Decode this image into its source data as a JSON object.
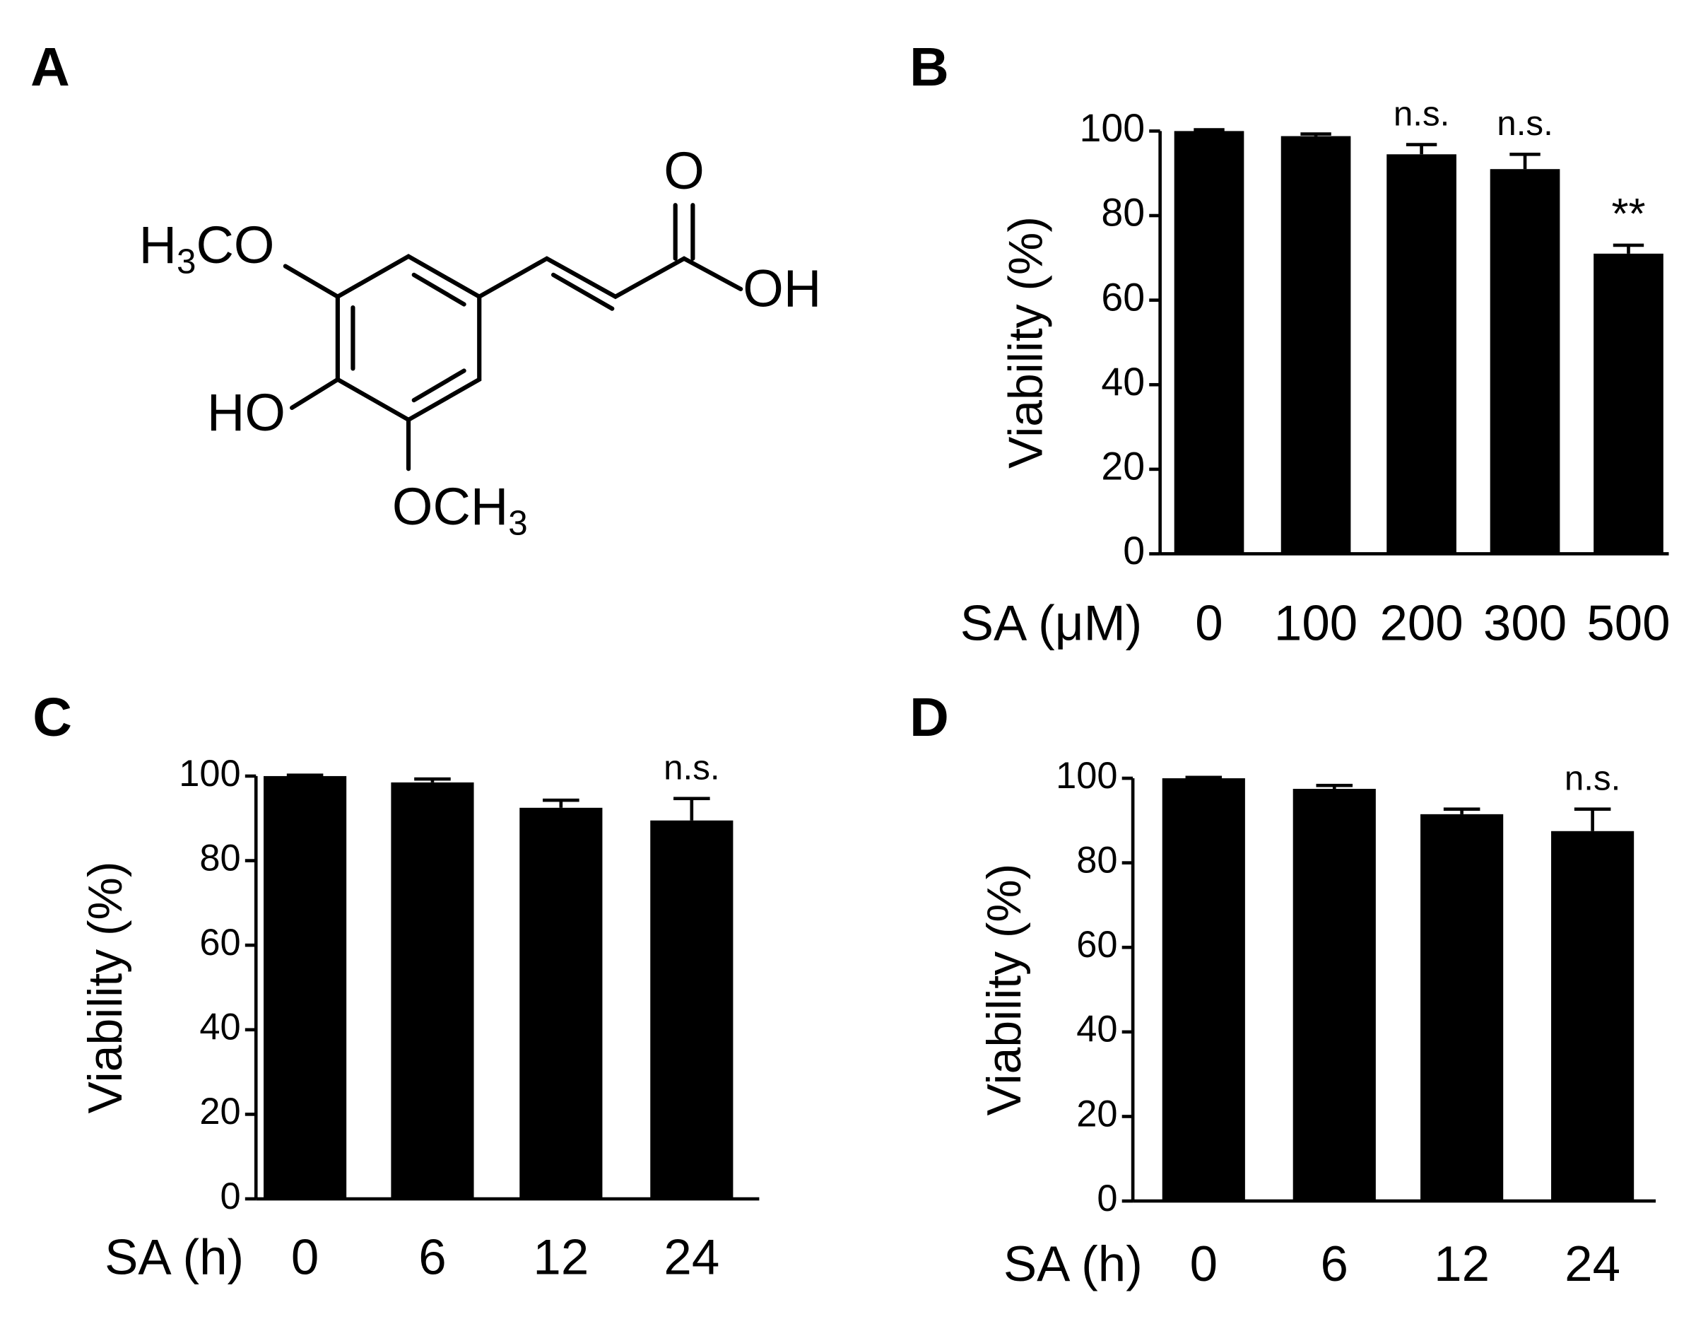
{
  "structure": {
    "panel": "A",
    "atoms": [
      [
        "O"
      ],
      [
        "OH"
      ],
      [
        "H",
        "3",
        "CO"
      ],
      [
        "HO"
      ],
      [
        "OCH",
        "3"
      ]
    ]
  },
  "chart_data": [
    {
      "type": "bar",
      "panel": "B",
      "ylabel": "Viability (%)",
      "xlabel": "SA (μM)",
      "categories": [
        "0",
        "100",
        "200",
        "300",
        "500"
      ],
      "values": [
        100,
        98.8,
        94.5,
        91,
        71
      ],
      "errors": [
        0.3,
        0.5,
        2.3,
        3.5,
        2
      ],
      "annotations": [
        null,
        null,
        "n.s.",
        "n.s.",
        "**"
      ],
      "color": "#000000",
      "ylim": [
        0,
        100
      ],
      "yticks": [
        0,
        20,
        40,
        60,
        80,
        100
      ]
    },
    {
      "type": "bar",
      "panel": "C",
      "ylabel": "Viability (%)",
      "xlabel": "SA (h)",
      "categories": [
        "0",
        "6",
        "12",
        "24"
      ],
      "values": [
        100,
        98.5,
        92.5,
        89.5
      ],
      "errors": [
        0.2,
        0.8,
        1.8,
        5.2
      ],
      "annotations": [
        null,
        null,
        null,
        "n.s."
      ],
      "color": "#000000",
      "ylim": [
        0,
        100
      ],
      "yticks": [
        0,
        20,
        40,
        60,
        80,
        100
      ]
    },
    {
      "type": "bar",
      "panel": "D",
      "ylabel": "Viability (%)",
      "xlabel": "SA (h)",
      "categories": [
        "0",
        "6",
        "12",
        "24"
      ],
      "values": [
        100,
        97.5,
        91.5,
        87.5
      ],
      "errors": [
        0.2,
        0.8,
        1.2,
        5.2
      ],
      "annotations": [
        null,
        null,
        null,
        "n.s."
      ],
      "color": "#000000",
      "ylim": [
        0,
        100
      ],
      "yticks": [
        0,
        20,
        40,
        60,
        80,
        100
      ]
    }
  ]
}
